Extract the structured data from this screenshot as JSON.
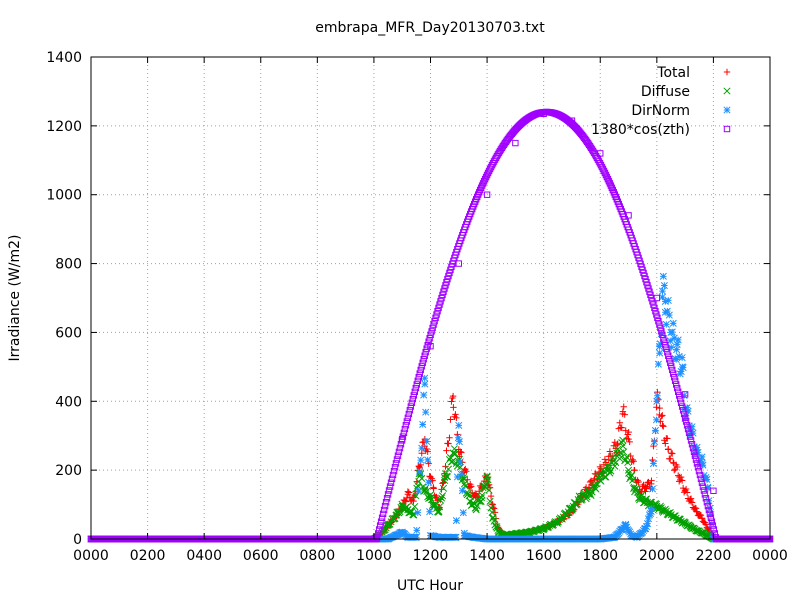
{
  "chart_data": {
    "type": "scatter",
    "title": "embrapa_MFR_Day20130703.txt",
    "xlabel": "UTC Hour",
    "ylabel": "Irradiance (W/m2)",
    "xlim": [
      0,
      24
    ],
    "ylim": [
      0,
      1400
    ],
    "grid": true,
    "legend_position": "top-right",
    "x_ticks": [
      {
        "value": 0,
        "label": "0000"
      },
      {
        "value": 2,
        "label": "0200"
      },
      {
        "value": 4,
        "label": "0400"
      },
      {
        "value": 6,
        "label": "0600"
      },
      {
        "value": 8,
        "label": "0800"
      },
      {
        "value": 10,
        "label": "1000"
      },
      {
        "value": 12,
        "label": "1200"
      },
      {
        "value": 14,
        "label": "1400"
      },
      {
        "value": 16,
        "label": "1600"
      },
      {
        "value": 18,
        "label": "1800"
      },
      {
        "value": 20,
        "label": "2000"
      },
      {
        "value": 22,
        "label": "2200"
      },
      {
        "value": 24,
        "label": "0000"
      }
    ],
    "y_ticks": [
      0,
      200,
      400,
      600,
      800,
      1000,
      1200,
      1400
    ],
    "series": [
      {
        "name": "Total",
        "marker": "plus",
        "color": "#ff0000",
        "x": [
          0,
          2,
          4,
          6,
          8,
          10,
          10.2,
          10.5,
          10.8,
          11.0,
          11.2,
          11.4,
          11.6,
          11.8,
          12.0,
          12.1,
          12.3,
          12.5,
          12.8,
          13.0,
          13.2,
          13.4,
          13.6,
          13.8,
          14.0,
          14.2,
          14.4,
          14.6,
          15.0,
          15.5,
          16.0,
          16.5,
          17.0,
          17.3,
          17.6,
          17.8,
          18.0,
          18.3,
          18.6,
          18.8,
          19.0,
          19.2,
          19.4,
          19.6,
          19.8,
          20.0,
          20.1,
          20.2,
          20.4,
          20.6,
          20.8,
          21.0,
          21.2,
          21.4,
          21.6,
          21.8,
          22.0,
          23,
          24
        ],
        "y": [
          0,
          0,
          0,
          0,
          0,
          0,
          10,
          40,
          70,
          95,
          130,
          110,
          210,
          290,
          180,
          150,
          90,
          190,
          415,
          260,
          200,
          150,
          120,
          150,
          180,
          100,
          30,
          10,
          15,
          20,
          30,
          50,
          80,
          120,
          150,
          175,
          195,
          230,
          275,
          370,
          290,
          200,
          140,
          150,
          160,
          400,
          380,
          330,
          260,
          220,
          180,
          140,
          110,
          80,
          60,
          30,
          0,
          0,
          0
        ]
      },
      {
        "name": "Diffuse",
        "marker": "cross",
        "color": "#00a000",
        "x": [
          0,
          2,
          4,
          6,
          8,
          10,
          10.2,
          10.5,
          10.8,
          11.0,
          11.2,
          11.4,
          11.6,
          11.8,
          12.0,
          12.1,
          12.3,
          12.5,
          12.8,
          13.0,
          13.2,
          13.4,
          13.6,
          13.8,
          14.0,
          14.2,
          14.4,
          14.6,
          15.0,
          15.5,
          16.0,
          16.5,
          17.0,
          17.3,
          17.6,
          17.8,
          18.0,
          18.3,
          18.6,
          18.8,
          19.0,
          19.2,
          19.4,
          19.6,
          19.8,
          20.0,
          20.2,
          20.4,
          20.6,
          20.8,
          21.0,
          21.2,
          21.4,
          21.6,
          21.8,
          22.0,
          23,
          24
        ],
        "y": [
          0,
          0,
          0,
          0,
          0,
          0,
          10,
          40,
          70,
          95,
          85,
          70,
          190,
          140,
          120,
          100,
          80,
          170,
          250,
          220,
          160,
          110,
          90,
          120,
          180,
          60,
          20,
          10,
          15,
          20,
          30,
          50,
          90,
          120,
          130,
          150,
          180,
          200,
          240,
          270,
          200,
          150,
          120,
          110,
          100,
          95,
          85,
          75,
          65,
          55,
          45,
          35,
          25,
          18,
          10,
          0,
          0,
          0
        ]
      },
      {
        "name": "DirNorm",
        "marker": "star",
        "color": "#1e90ff",
        "x": [
          0,
          2,
          4,
          6,
          8,
          10,
          10.5,
          11.0,
          11.2,
          11.5,
          11.8,
          12.0,
          12.3,
          12.6,
          12.9,
          13.0,
          13.2,
          13.5,
          14.0,
          15.0,
          16.0,
          17.0,
          18.0,
          18.5,
          18.9,
          19.1,
          19.3,
          19.6,
          19.8,
          20.0,
          20.1,
          20.2,
          20.3,
          20.5,
          20.7,
          20.9,
          21.0,
          21.2,
          21.4,
          21.6,
          21.8,
          22.0,
          23,
          24
        ],
        "y": [
          0,
          0,
          0,
          0,
          0,
          0,
          0,
          20,
          5,
          5,
          450,
          10,
          5,
          5,
          5,
          330,
          10,
          5,
          0,
          0,
          0,
          0,
          0,
          5,
          40,
          10,
          5,
          30,
          80,
          400,
          540,
          720,
          690,
          600,
          550,
          500,
          380,
          320,
          250,
          220,
          150,
          0,
          0,
          0
        ]
      },
      {
        "name": "1380*cos(zth)",
        "marker": "square",
        "color": "#a000ff",
        "curve": {
          "sunrise": 10.1,
          "solar_noon": 16.1,
          "sunset": 22.1,
          "peak": 1240
        },
        "x": [
          0,
          2,
          4,
          6,
          8,
          10,
          10.1,
          11,
          12,
          13,
          14,
          15,
          16,
          16.1,
          17,
          18,
          19,
          20,
          21,
          22,
          22.1,
          23,
          24
        ],
        "y": [
          0,
          0,
          0,
          0,
          0,
          0,
          0,
          290,
          560,
          800,
          1000,
          1150,
          1235,
          1240,
          1215,
          1120,
          940,
          700,
          420,
          140,
          0,
          0,
          0
        ]
      }
    ]
  }
}
